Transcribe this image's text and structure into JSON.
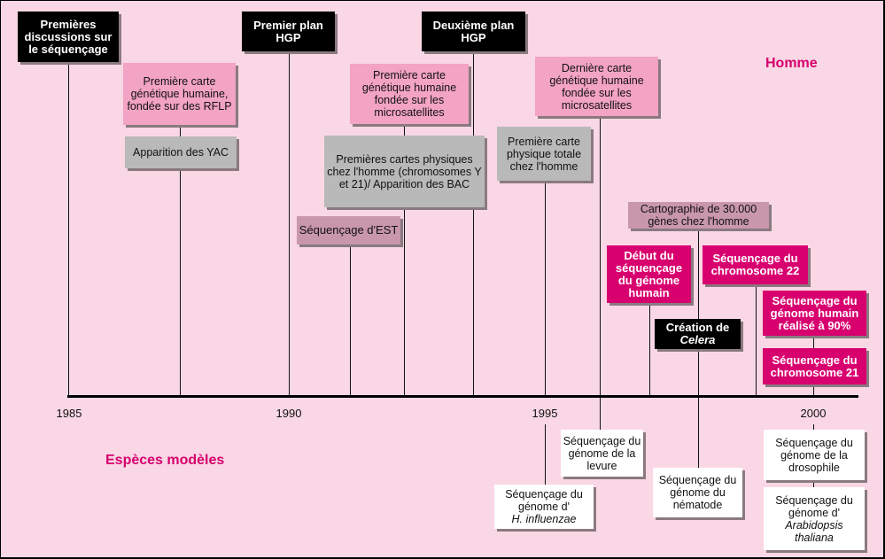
{
  "section_labels": {
    "human": "Homme",
    "model_species": "Espèces modèles"
  },
  "years": [
    "1985",
    "1990",
    "1995",
    "2000"
  ],
  "events": {
    "first_discussions": "Premières discussions sur le séquençage",
    "first_plan": "Premier plan HGP",
    "second_plan": "Deuxième plan HGP",
    "rflp_map": "Première carte génétique humaine, fondée sur des RFLP",
    "yac": "Apparition des YAC",
    "microsat_map": "Première carte génétique humaine fondée sur les microsatellites",
    "physical_maps": "Premières cartes physiques chez l'homme (chromosomes Y et 21)/ Apparition des BAC",
    "est": "Séquençage d'EST",
    "last_map": "Dernière carte génétique humaine fondée sur les microsatellites",
    "total_physical_map": "Première carte physique totale chez l'homme",
    "mapping_30000": "Cartographie de 30.000 gènes chez l'homme",
    "genome_start": "Début du séquençage du génome humain",
    "celera_prefix": "Création de",
    "celera_name": "Celera",
    "chr22": "Séquençage du chromosome 22",
    "genome_90": "Séquençage du génome humain réalisé à 90%",
    "chr21": "Séquençage du chromosome 21",
    "yeast": "Séquençage du génome de la levure",
    "hinfluenzae_prefix": "Séquençage du génome d'",
    "hinfluenzae_name": "H. influenzae",
    "nematode": "Séquençage du génome du nématode",
    "drosophila": "Séquençage du génome de la drosophile",
    "arabidopsis_prefix": "Séquençage du génome d'",
    "arabidopsis_name": "Arabidopsis thaliana"
  },
  "colors": {
    "background": "#f9d7e4",
    "policy": "#000000",
    "genetic_map": "#f3a3c3",
    "physical_map": "#b9b9b9",
    "mapping": "#c997ab",
    "sequencing": "#d8006f",
    "model_species": "#ffffff",
    "accent": "#d6006e"
  }
}
